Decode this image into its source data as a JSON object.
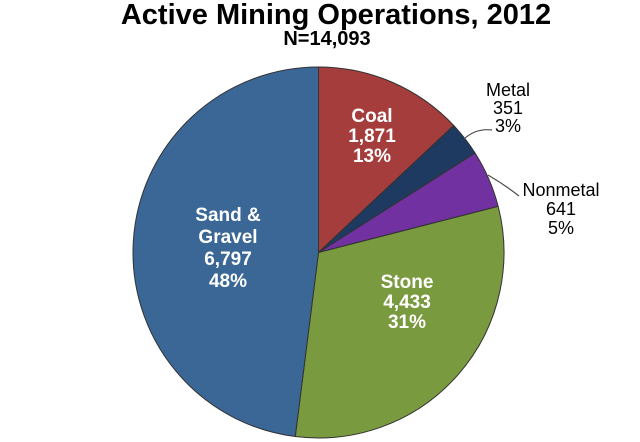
{
  "chart_data": {
    "type": "pie",
    "title": "Active Mining Operations, 2012",
    "subtitle": "N=14,093",
    "total": 14093,
    "start_angle": "12-o-clock",
    "direction": "clockwise",
    "slice_stroke_color": "#333333",
    "leader_line_color": "#4D4D4D",
    "slices": [
      {
        "label": "Coal",
        "label_lines": [
          "Coal"
        ],
        "value": 1871,
        "value_text": "1,871",
        "pct": 13,
        "pct_text": "13%",
        "color": "#A43D3B",
        "label_placement": "inside",
        "label_color": "#FFFFFF"
      },
      {
        "label": "Metal",
        "label_lines": [
          "Metal"
        ],
        "value": 351,
        "value_text": "351",
        "pct": 3,
        "pct_text": "3%",
        "color": "#1F3A60",
        "label_placement": "outside",
        "label_color": "#000000"
      },
      {
        "label": "Nonmetal",
        "label_lines": [
          "Nonmetal"
        ],
        "value": 641,
        "value_text": "641",
        "pct": 5,
        "pct_text": "5%",
        "color": "#7131A1",
        "label_placement": "outside",
        "label_color": "#000000"
      },
      {
        "label": "Stone",
        "label_lines": [
          "Stone"
        ],
        "value": 4433,
        "value_text": "4,433",
        "pct": 31,
        "pct_text": "31%",
        "color": "#7A9A3F",
        "label_placement": "inside",
        "label_color": "#FFFFFF"
      },
      {
        "label": "Sand & Gravel",
        "label_lines": [
          "Sand &",
          "Gravel"
        ],
        "value": 6797,
        "value_text": "6,797",
        "pct": 48,
        "pct_text": "48%",
        "color": "#3A6795",
        "label_placement": "inside",
        "label_color": "#FFFFFF"
      }
    ]
  }
}
